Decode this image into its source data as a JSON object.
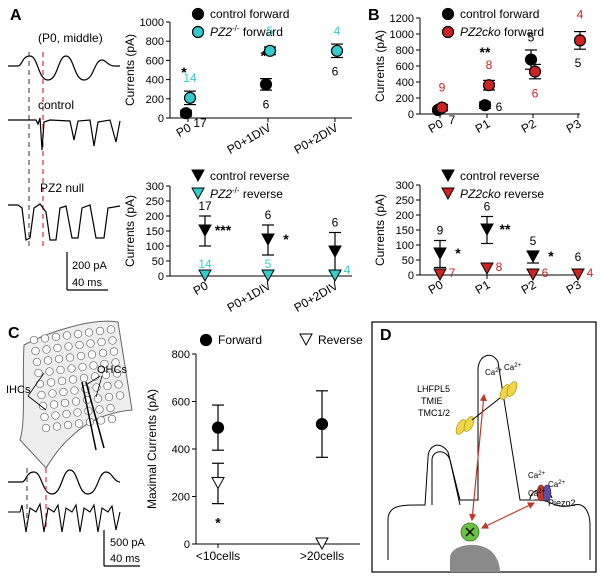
{
  "panels": {
    "A": {
      "letter": "A",
      "stim_label": "(P0, middle)",
      "trace1_label": "control",
      "trace2_label": "PZ2 null",
      "scale_pA": "200 pA",
      "scale_ms": "40 ms"
    },
    "B": {
      "letter": "B"
    },
    "C": {
      "letter": "C",
      "ihc_label": "IHCs",
      "ohc_label": "OHCs",
      "scale_pA": "500 pA",
      "scale_ms": "40 ms"
    },
    "D": {
      "letter": "D",
      "lhfpl5": "LHFPL5",
      "tmie": "TMIE",
      "tmc": "TMC1/2",
      "piezo": "Piezo2",
      "ca_label": "Ca",
      "ca_sup": "2+"
    }
  },
  "chart_data": [
    {
      "id": "A-top",
      "type": "scatter",
      "ylabel": "Currents (pA)",
      "ylim": [
        0,
        1000
      ],
      "yticks": [
        0,
        200,
        400,
        600,
        800,
        1000
      ],
      "categories": [
        "P0",
        "P0+1DIV",
        "P0+2DIV"
      ],
      "legend_position": "top",
      "series": [
        {
          "name": "control forward",
          "color": "#000000",
          "values": [
            50,
            350,
            null
          ],
          "err": [
            30,
            60,
            null
          ],
          "n": [
            "17",
            "6",
            null
          ],
          "stars": [
            "*",
            "**",
            null
          ]
        },
        {
          "name": "PZ2 forward",
          "name_sup": "-/-",
          "color": "#33cccc",
          "values": [
            210,
            700,
            700
          ],
          "err": [
            70,
            40,
            70
          ],
          "n": [
            "14",
            "5",
            "4"
          ]
        }
      ],
      "extra_n": {
        "label": "6",
        "category": 2
      }
    },
    {
      "id": "A-bottom",
      "type": "scatter",
      "ylabel": "Currents (pA)",
      "ylim": [
        0,
        300
      ],
      "yticks": [
        0,
        50,
        100,
        150,
        200,
        250,
        300
      ],
      "categories": [
        "P0",
        "P0+1DIV",
        "P0+2DIV"
      ],
      "legend_position": "top",
      "series": [
        {
          "name": "control reverse",
          "color": "#000000",
          "values": [
            150,
            120,
            80
          ],
          "err": [
            50,
            50,
            65
          ],
          "n": [
            "17",
            "6",
            "6"
          ],
          "stars": [
            "***",
            "*",
            null
          ]
        },
        {
          "name": "PZ2 reverse",
          "name_sup": "-/-",
          "color": "#33cccc",
          "values": [
            0,
            0,
            0
          ],
          "n": [
            "14",
            "5",
            "4"
          ]
        }
      ]
    },
    {
      "id": "B-top",
      "type": "scatter",
      "ylabel": "Currents (pA)",
      "ylim": [
        0,
        1200
      ],
      "yticks": [
        0,
        200,
        400,
        600,
        800,
        1000,
        1200
      ],
      "categories": [
        "P0",
        "P1",
        "P2",
        "P3"
      ],
      "legend_position": "top",
      "series": [
        {
          "name": "control forward",
          "color": "#000000",
          "values": [
            50,
            110,
            680,
            null
          ],
          "err": [
            20,
            40,
            120,
            null
          ],
          "n": [
            "7",
            "6",
            "5",
            null
          ],
          "stars": [
            null,
            "**",
            null,
            null
          ]
        },
        {
          "name": "PZ2cko forward",
          "color": "#cc2222",
          "values": [
            80,
            360,
            530,
            920
          ],
          "err": [
            40,
            60,
            90,
            110
          ],
          "n": [
            "9",
            "8",
            "6",
            "4"
          ]
        }
      ],
      "extra_n": {
        "label": "5",
        "category": 3
      }
    },
    {
      "id": "B-bottom",
      "type": "scatter",
      "ylabel": "Currents (pA)",
      "ylim": [
        0,
        300
      ],
      "yticks": [
        0,
        50,
        100,
        150,
        200,
        250,
        300
      ],
      "categories": [
        "P0",
        "P1",
        "P2",
        "P3"
      ],
      "legend_position": "top",
      "series": [
        {
          "name": "control reverse",
          "color": "#000000",
          "values": [
            70,
            150,
            60,
            null
          ],
          "err": [
            45,
            45,
            20,
            null
          ],
          "n": [
            "9",
            "6",
            "5",
            null
          ],
          "stars": [
            "*",
            "**",
            "*",
            null
          ]
        },
        {
          "name": "PZ2cko reverse",
          "color": "#cc2222",
          "values": [
            0,
            20,
            0,
            0
          ],
          "n": [
            "7",
            "8",
            "6",
            "4"
          ]
        }
      ],
      "extra_n": {
        "label": "6",
        "category": 3
      }
    },
    {
      "id": "C",
      "type": "scatter",
      "ylabel": "Maximal Currents (pA)",
      "ylim": [
        0,
        800
      ],
      "yticks": [
        0,
        200,
        400,
        600,
        800
      ],
      "categories": [
        "<10cells",
        ">20cells"
      ],
      "legend_position": "top",
      "series": [
        {
          "name": "Forward",
          "color": "#000000",
          "values": [
            490,
            505
          ],
          "err": [
            95,
            140
          ]
        },
        {
          "name": "Reverse",
          "color": "#ffffff",
          "values": [
            255,
            0
          ],
          "err": [
            85,
            null
          ],
          "stars": [
            "*",
            null
          ]
        }
      ]
    }
  ]
}
